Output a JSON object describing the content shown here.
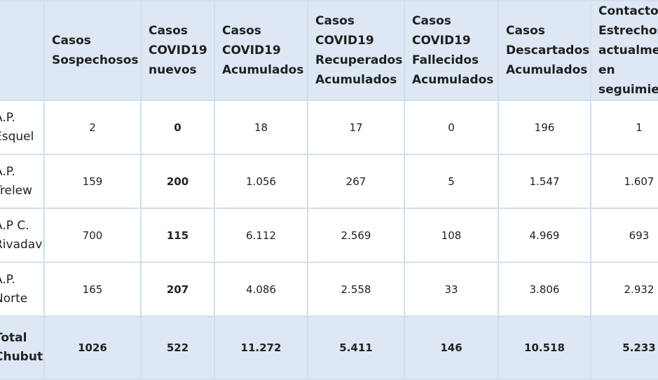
{
  "headers": [
    "",
    "Casos Sospechosos",
    "Casos COVID19 nuevos",
    "Casos COVID19 Acumulados",
    "Casos COVID19 Recuperados Acumulados",
    "Casos COVID19 Fallecidos Acumulados",
    "Casos Descartados Acumulados",
    "Contactos Estrechos actualmente en seguimiento"
  ],
  "rows": [
    {
      "label": "A.P. Esquel",
      "values": [
        "2",
        "0",
        "18",
        "17",
        "0",
        "196",
        "1"
      ]
    },
    {
      "label": "A.P. Trelew",
      "values": [
        "159",
        "200",
        "1.056",
        "267",
        "5",
        "1.547",
        "1.607"
      ]
    },
    {
      "label": "A.P C. Rivadavia",
      "values": [
        "700",
        "115",
        "6.112",
        "2.569",
        "108",
        "4.969",
        "693"
      ]
    },
    {
      "label": "A.P. Norte",
      "values": [
        "165",
        "207",
        "4.086",
        "2.558",
        "33",
        "3.806",
        "2.932"
      ]
    }
  ],
  "total": {
    "label": "Total Chubut",
    "values": [
      "1026",
      "522",
      "11.272",
      "5.411",
      "146",
      "10.518",
      "5.233"
    ]
  },
  "colors": {
    "header_bg": "#dde8f4",
    "border": "#d2dfee",
    "text": "#222222"
  }
}
